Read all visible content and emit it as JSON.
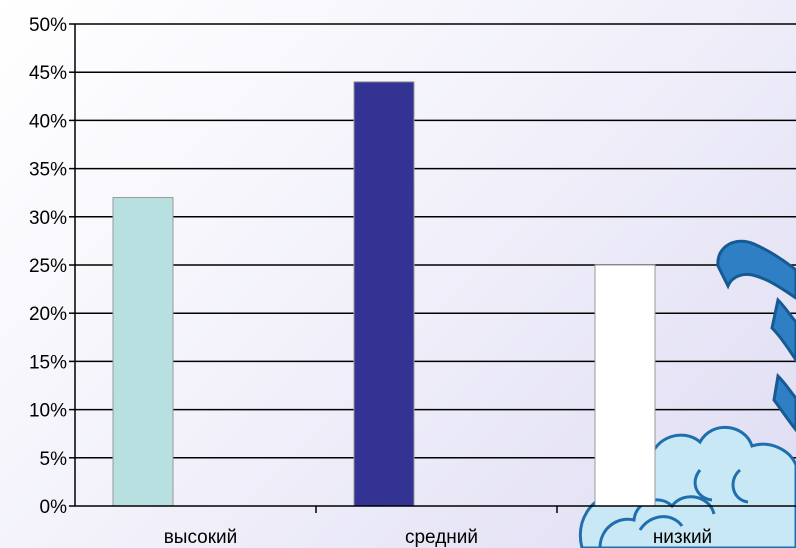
{
  "chart_data": {
    "type": "bar",
    "categories": [
      "высокий",
      "средний",
      "низкий"
    ],
    "values": [
      32,
      44,
      25
    ],
    "value_unit": "%",
    "ylim": [
      0,
      50
    ],
    "yticks": [
      "0%",
      "5%",
      "10%",
      "15%",
      "20%",
      "25%",
      "30%",
      "35%",
      "40%",
      "45%",
      "50%"
    ],
    "grid": true,
    "legend": "none",
    "bar_colors": [
      "#b9e0e0",
      "#333393",
      "#ffffff"
    ],
    "decoration": "blue-cloud-ornament-bottom-right"
  }
}
